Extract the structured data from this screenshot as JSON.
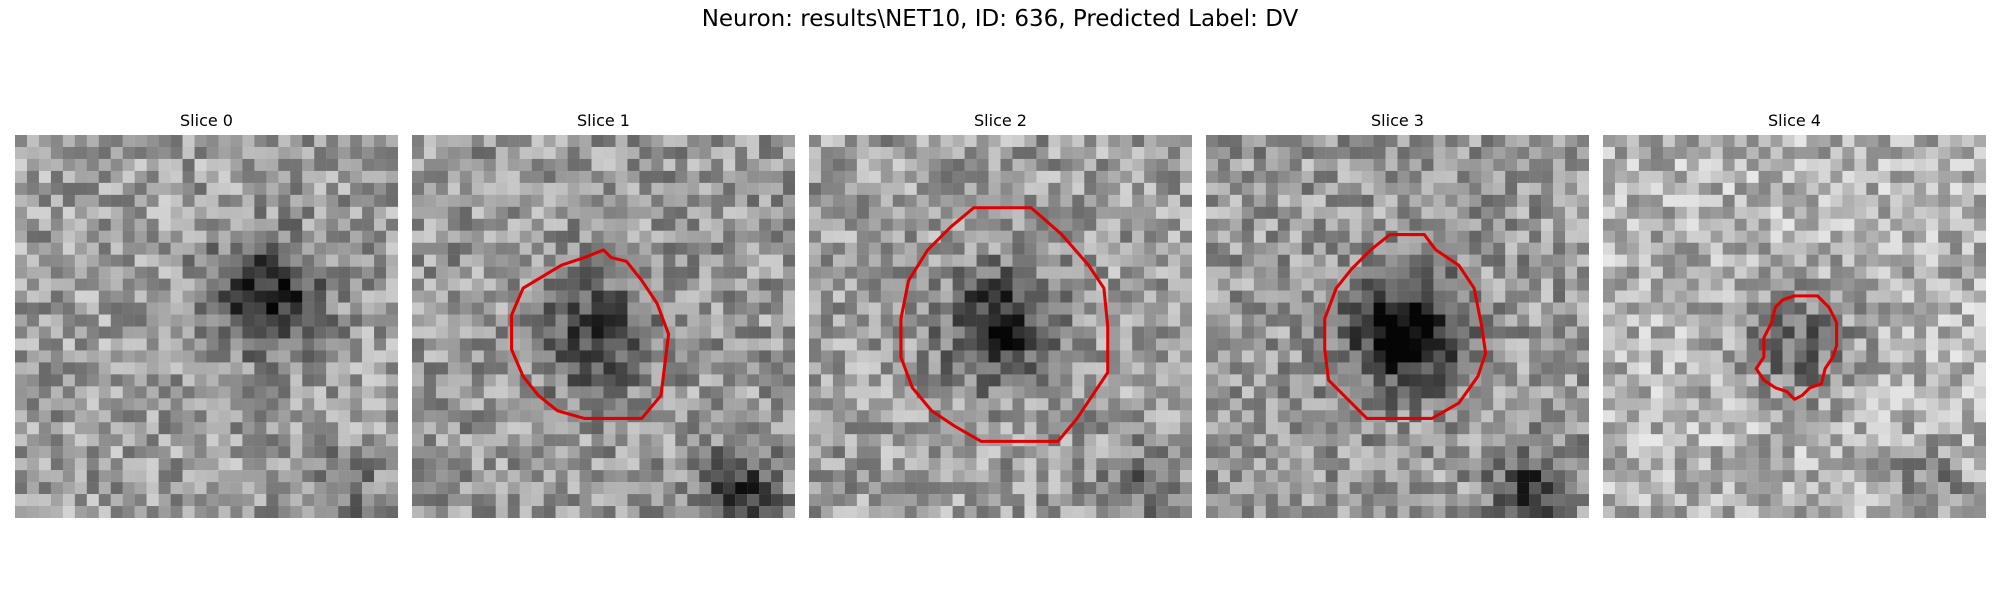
{
  "figure": {
    "title": "Neuron: results\\NET10, ID: 636, Predicted Label: DV"
  },
  "colors": {
    "contour": "#e00000",
    "background": "#ffffff"
  },
  "slices": [
    {
      "label": "Slice 0",
      "seed": 17,
      "contour": [],
      "dark_center": [
        0.66,
        0.42
      ],
      "dark_strength": 0.5,
      "bright": 0.62
    },
    {
      "label": "Slice 1",
      "seed": 29,
      "contour": [
        [
          0.5,
          0.3
        ],
        [
          0.52,
          0.32
        ],
        [
          0.56,
          0.33
        ],
        [
          0.6,
          0.38
        ],
        [
          0.64,
          0.44
        ],
        [
          0.67,
          0.52
        ],
        [
          0.66,
          0.6
        ],
        [
          0.65,
          0.68
        ],
        [
          0.6,
          0.74
        ],
        [
          0.53,
          0.74
        ],
        [
          0.45,
          0.74
        ],
        [
          0.38,
          0.72
        ],
        [
          0.33,
          0.68
        ],
        [
          0.29,
          0.63
        ],
        [
          0.26,
          0.56
        ],
        [
          0.26,
          0.47
        ],
        [
          0.29,
          0.4
        ],
        [
          0.34,
          0.37
        ],
        [
          0.39,
          0.34
        ],
        [
          0.45,
          0.32
        ]
      ],
      "dark_center": [
        0.48,
        0.52
      ],
      "dark_strength": 0.35,
      "bright": 0.6
    },
    {
      "label": "Slice 2",
      "seed": 41,
      "contour": [
        [
          0.43,
          0.19
        ],
        [
          0.58,
          0.19
        ],
        [
          0.66,
          0.26
        ],
        [
          0.73,
          0.34
        ],
        [
          0.77,
          0.4
        ],
        [
          0.78,
          0.5
        ],
        [
          0.78,
          0.62
        ],
        [
          0.74,
          0.68
        ],
        [
          0.7,
          0.74
        ],
        [
          0.65,
          0.8
        ],
        [
          0.57,
          0.8
        ],
        [
          0.45,
          0.8
        ],
        [
          0.38,
          0.76
        ],
        [
          0.32,
          0.72
        ],
        [
          0.27,
          0.66
        ],
        [
          0.24,
          0.58
        ],
        [
          0.24,
          0.48
        ],
        [
          0.26,
          0.38
        ],
        [
          0.31,
          0.3
        ],
        [
          0.37,
          0.24
        ]
      ],
      "dark_center": [
        0.5,
        0.5
      ],
      "dark_strength": 0.5,
      "bright": 0.62
    },
    {
      "label": "Slice 3",
      "seed": 53,
      "contour": [
        [
          0.48,
          0.26
        ],
        [
          0.57,
          0.26
        ],
        [
          0.6,
          0.3
        ],
        [
          0.66,
          0.34
        ],
        [
          0.7,
          0.4
        ],
        [
          0.72,
          0.5
        ],
        [
          0.73,
          0.57
        ],
        [
          0.71,
          0.63
        ],
        [
          0.66,
          0.7
        ],
        [
          0.59,
          0.74
        ],
        [
          0.5,
          0.74
        ],
        [
          0.42,
          0.74
        ],
        [
          0.36,
          0.68
        ],
        [
          0.32,
          0.64
        ],
        [
          0.31,
          0.56
        ],
        [
          0.31,
          0.48
        ],
        [
          0.34,
          0.4
        ],
        [
          0.38,
          0.35
        ],
        [
          0.43,
          0.3
        ]
      ],
      "dark_center": [
        0.52,
        0.52
      ],
      "dark_strength": 0.6,
      "bright": 0.6
    },
    {
      "label": "Slice 4",
      "seed": 67,
      "contour": [
        [
          0.5,
          0.42
        ],
        [
          0.56,
          0.42
        ],
        [
          0.59,
          0.45
        ],
        [
          0.61,
          0.49
        ],
        [
          0.61,
          0.55
        ],
        [
          0.6,
          0.58
        ],
        [
          0.58,
          0.61
        ],
        [
          0.57,
          0.65
        ],
        [
          0.54,
          0.66
        ],
        [
          0.52,
          0.68
        ],
        [
          0.5,
          0.69
        ],
        [
          0.48,
          0.67
        ],
        [
          0.45,
          0.66
        ],
        [
          0.42,
          0.64
        ],
        [
          0.4,
          0.61
        ],
        [
          0.42,
          0.58
        ],
        [
          0.42,
          0.53
        ],
        [
          0.44,
          0.49
        ],
        [
          0.45,
          0.45
        ],
        [
          0.47,
          0.43
        ]
      ],
      "dark_center": [
        0.51,
        0.55
      ],
      "dark_strength": 0.3,
      "bright": 0.7
    }
  ]
}
